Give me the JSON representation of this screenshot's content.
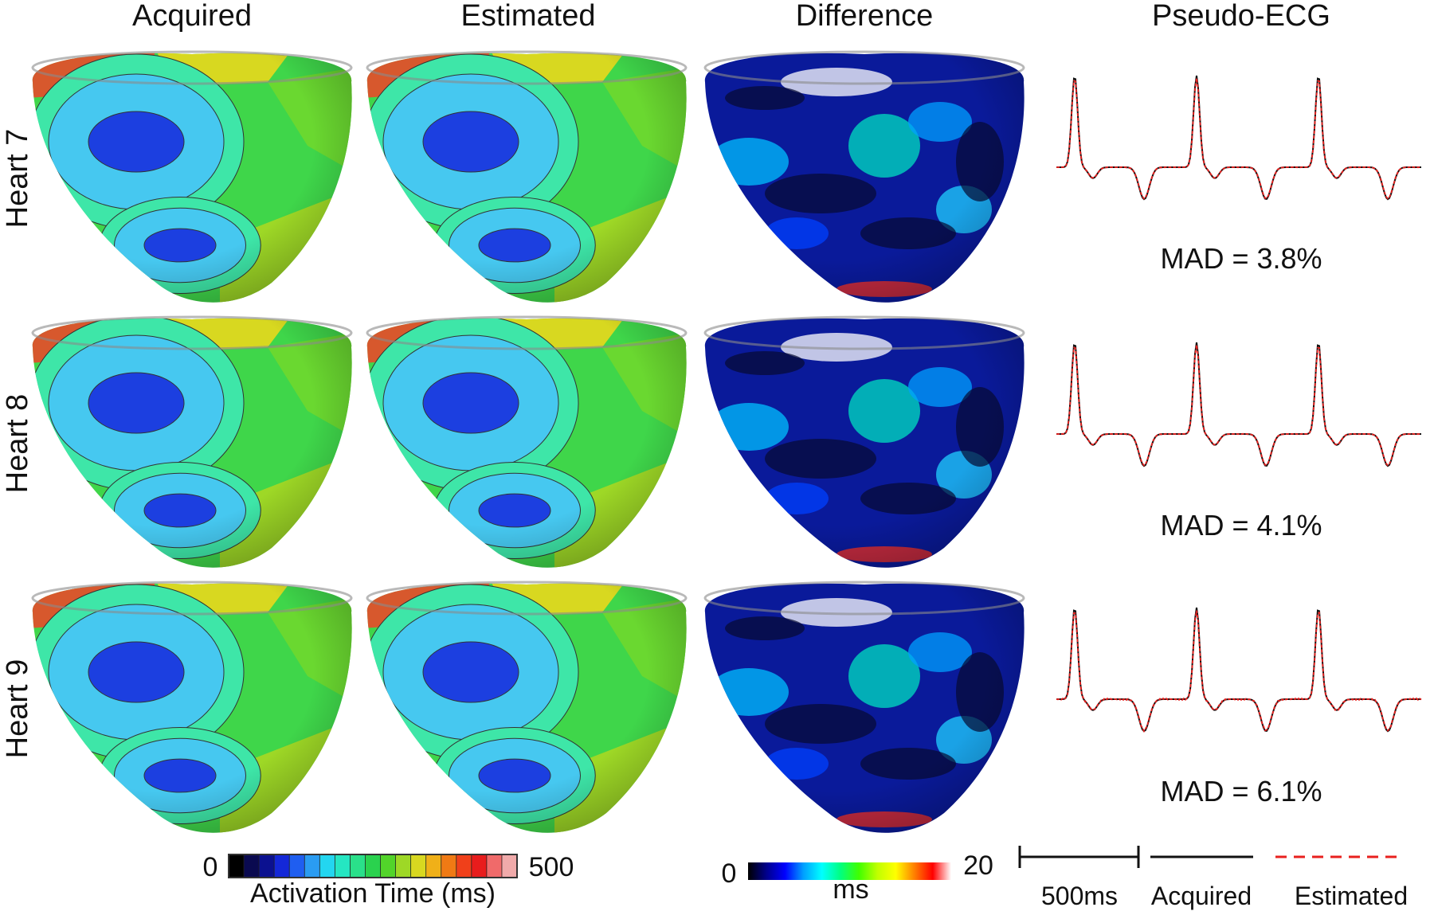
{
  "columns": [
    "Acquired",
    "Estimated",
    "Difference",
    "Pseudo-ECG"
  ],
  "rows": [
    {
      "label": "Heart 7",
      "mad": "MAD = 3.8%"
    },
    {
      "label": "Heart 8",
      "mad": "MAD = 4.1%"
    },
    {
      "label": "Heart 9",
      "mad": "MAD = 6.1%"
    }
  ],
  "activation_colorbar": {
    "min": "0",
    "max": "500",
    "label": "Activation Time (ms)",
    "colors": [
      "#000000",
      "#0a0a50",
      "#0b1190",
      "#1428d8",
      "#1f5ef0",
      "#2a9cf2",
      "#23d6f0",
      "#25e6c2",
      "#2ae08a",
      "#2ad24e",
      "#52d42a",
      "#9ed826",
      "#d8d820",
      "#f0b018",
      "#f07a14",
      "#f0401a",
      "#e81c1c",
      "#f06a6a",
      "#f0aaaa"
    ]
  },
  "difference_colorbar": {
    "min": "0",
    "max": "20",
    "label": "ms",
    "colors": [
      "#000000",
      "#00008c",
      "#0000ff",
      "#00a0ff",
      "#00ffff",
      "#00ff80",
      "#40ff00",
      "#c0ff00",
      "#ffff00",
      "#ff8000",
      "#ff0000",
      "#ffffff"
    ]
  },
  "legend": {
    "scale": "500ms",
    "acquired": "Acquired",
    "estimated": "Estimated",
    "acquired_color": "#111111",
    "estimated_color": "#e8201e"
  }
}
